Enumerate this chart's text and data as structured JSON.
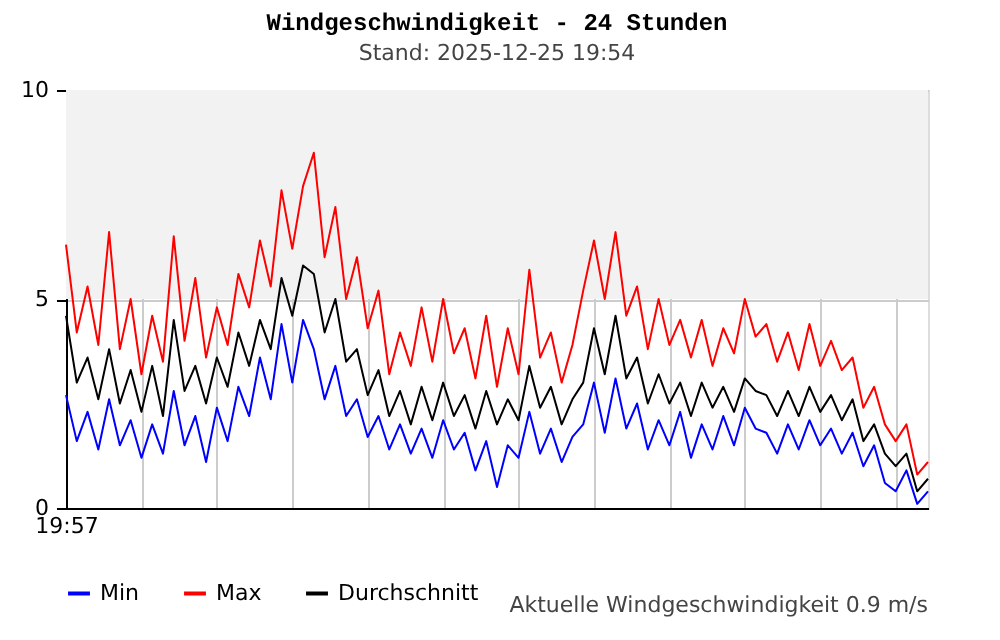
{
  "chart_data": {
    "type": "line",
    "title": "Windgeschwindigkeit - 24 Stunden",
    "subtitle": "Stand: 2025-12-25 19:54",
    "annotations": [
      "Aktuelle Windgeschwindigkeit 0.9 m/s"
    ],
    "categories": [
      "19:57",
      null,
      null,
      null,
      null,
      null,
      null,
      null,
      null,
      null,
      null,
      null,
      null,
      null,
      null,
      null,
      null,
      null,
      null,
      null,
      null,
      null,
      null,
      null,
      null,
      null,
      null,
      null,
      null,
      null,
      null,
      null,
      null,
      null,
      null,
      null,
      null,
      null,
      null,
      null,
      null,
      null,
      null,
      null,
      null,
      null,
      null,
      null,
      null,
      null,
      null,
      null,
      null,
      null,
      null,
      null,
      null,
      null,
      null,
      null,
      null,
      null,
      null,
      null,
      null,
      null,
      null,
      null,
      null,
      null,
      null,
      null,
      null,
      null,
      null,
      null,
      null,
      null,
      null,
      null,
      null
    ],
    "series": [
      {
        "name": "Min",
        "color": "#0000ff",
        "values": [
          2.7,
          1.6,
          2.3,
          1.4,
          2.6,
          1.5,
          2.1,
          1.2,
          2.0,
          1.3,
          2.8,
          1.5,
          2.2,
          1.1,
          2.4,
          1.6,
          2.9,
          2.2,
          3.6,
          2.6,
          4.4,
          3.0,
          4.5,
          3.8,
          2.6,
          3.4,
          2.2,
          2.6,
          1.7,
          2.2,
          1.4,
          2.0,
          1.3,
          1.9,
          1.2,
          2.1,
          1.4,
          1.8,
          0.9,
          1.6,
          0.5,
          1.5,
          1.2,
          2.3,
          1.3,
          1.9,
          1.1,
          1.7,
          2.0,
          3.0,
          1.8,
          3.1,
          1.9,
          2.5,
          1.4,
          2.1,
          1.5,
          2.3,
          1.2,
          2.0,
          1.4,
          2.2,
          1.5,
          2.4,
          1.9,
          1.8,
          1.3,
          2.0,
          1.4,
          2.1,
          1.5,
          1.9,
          1.3,
          1.8,
          1.0,
          1.5,
          0.6,
          0.4,
          0.9,
          0.1,
          0.4
        ]
      },
      {
        "name": "Max",
        "color": "#ff0000",
        "values": [
          6.3,
          4.2,
          5.3,
          3.9,
          6.6,
          3.8,
          5.0,
          3.2,
          4.6,
          3.5,
          6.5,
          4.0,
          5.5,
          3.6,
          4.8,
          3.9,
          5.6,
          4.8,
          6.4,
          5.3,
          7.6,
          6.2,
          7.7,
          8.5,
          6.0,
          7.2,
          5.0,
          6.0,
          4.3,
          5.2,
          3.2,
          4.2,
          3.4,
          4.8,
          3.5,
          5.0,
          3.7,
          4.3,
          3.1,
          4.6,
          2.9,
          4.3,
          3.2,
          5.7,
          3.6,
          4.2,
          3.0,
          3.9,
          5.2,
          6.4,
          5.0,
          6.6,
          4.6,
          5.3,
          3.8,
          5.0,
          3.9,
          4.5,
          3.6,
          4.5,
          3.4,
          4.3,
          3.7,
          5.0,
          4.1,
          4.4,
          3.5,
          4.2,
          3.3,
          4.4,
          3.4,
          4.0,
          3.3,
          3.6,
          2.4,
          2.9,
          2.0,
          1.6,
          2.0,
          0.8,
          1.1
        ]
      },
      {
        "name": "Durchschnitt",
        "color": "#000000",
        "values": [
          4.6,
          3.0,
          3.6,
          2.6,
          3.8,
          2.5,
          3.3,
          2.3,
          3.4,
          2.2,
          4.5,
          2.8,
          3.4,
          2.5,
          3.6,
          2.9,
          4.2,
          3.4,
          4.5,
          3.8,
          5.5,
          4.6,
          5.8,
          5.6,
          4.2,
          5.0,
          3.5,
          3.8,
          2.7,
          3.3,
          2.2,
          2.8,
          2.0,
          2.9,
          2.1,
          3.0,
          2.2,
          2.7,
          1.9,
          2.8,
          2.0,
          2.6,
          2.1,
          3.4,
          2.4,
          2.9,
          2.0,
          2.6,
          3.0,
          4.3,
          3.2,
          4.6,
          3.1,
          3.6,
          2.5,
          3.2,
          2.5,
          3.0,
          2.2,
          3.0,
          2.4,
          2.9,
          2.3,
          3.1,
          2.8,
          2.7,
          2.2,
          2.8,
          2.2,
          2.9,
          2.3,
          2.7,
          2.1,
          2.6,
          1.6,
          2.0,
          1.3,
          1.0,
          1.3,
          0.4,
          0.7
        ]
      }
    ],
    "ylim": [
      0,
      10
    ],
    "yticks": [
      0,
      5,
      10
    ],
    "bands": [
      {
        "axis": "y",
        "from": 5,
        "to": 10,
        "color": "#f2f2f2"
      }
    ],
    "grid": true,
    "legend": "bottom",
    "marker": "none",
    "line_style": "solid"
  }
}
